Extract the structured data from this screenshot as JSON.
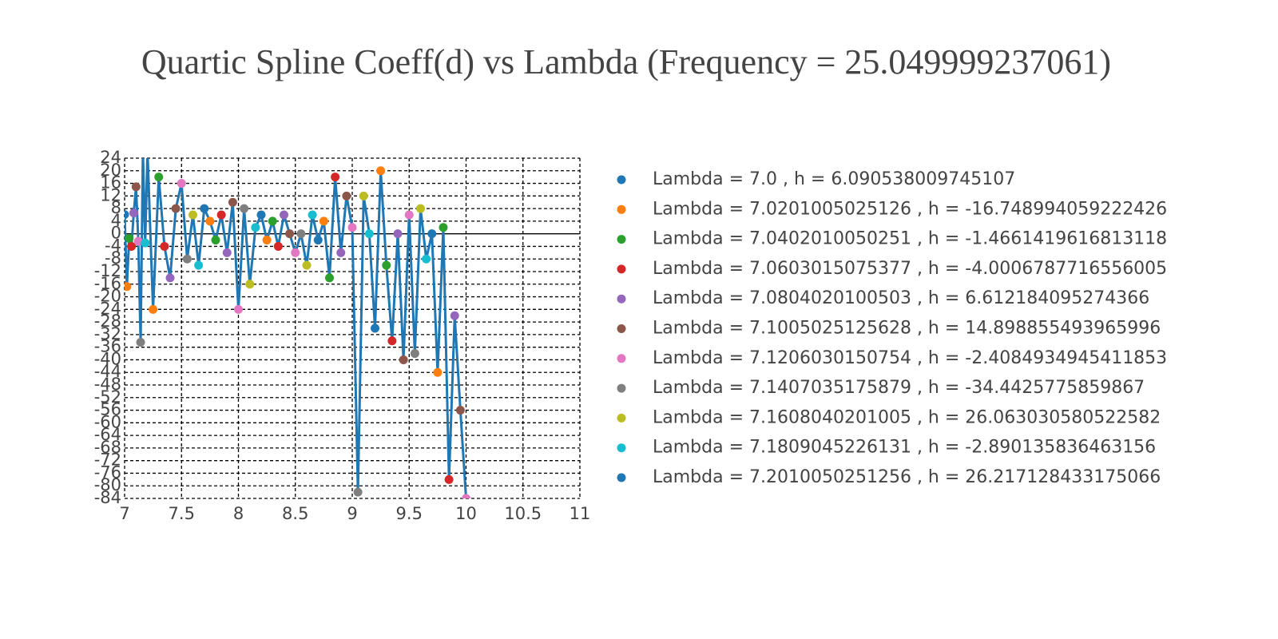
{
  "chart_data": {
    "type": "line",
    "title": "Quartic Spline Coeff(d) vs Lambda (Frequency = 25.049999237061)",
    "x": [
      7.0,
      7.0201005025126,
      7.0402010050251,
      7.0603015075377,
      7.0804020100503,
      7.1005025125628,
      7.1206030150754,
      7.1407035175879,
      7.1608040201005,
      7.1809045226131,
      7.2010050251256,
      7.25,
      7.3,
      7.35,
      7.4,
      7.45,
      7.5,
      7.55,
      7.6,
      7.65,
      7.7,
      7.75,
      7.8,
      7.85,
      7.9,
      7.95,
      8.0,
      8.05,
      8.1,
      8.15,
      8.2,
      8.25,
      8.3,
      8.35,
      8.4,
      8.45,
      8.5,
      8.55,
      8.6,
      8.65,
      8.7,
      8.75,
      8.8,
      8.85,
      8.9,
      8.95,
      9.0,
      9.05,
      9.1,
      9.15,
      9.2,
      9.25,
      9.3,
      9.35,
      9.4,
      9.45,
      9.5,
      9.55,
      9.6,
      9.65,
      9.7,
      9.75,
      9.8,
      9.85,
      9.9,
      9.95,
      10.0
    ],
    "values": [
      6.090538009745107,
      -16.748994059222426,
      -1.4661419616813118,
      -4.0006787716556005,
      6.612184095274366,
      14.898855493965996,
      -2.4084934945411853,
      -34.4425775859867,
      26.063030580522582,
      -2.890135836463156,
      26.217128433175066,
      -24,
      18,
      -4,
      -14,
      8,
      16,
      -8,
      6,
      -10,
      8,
      4,
      -2,
      6,
      -6,
      10,
      -24,
      8,
      -16,
      2,
      6,
      -2,
      4,
      -4,
      6,
      0,
      -6,
      0,
      -10,
      6,
      -2,
      4,
      -14,
      18,
      -6,
      12,
      2,
      -82,
      12,
      0,
      -30,
      20,
      -10,
      -34,
      0,
      -40,
      6,
      -38,
      8,
      -8,
      0,
      -44,
      2,
      -78,
      -26,
      -56,
      -84
    ],
    "line_color": "#1f77b4",
    "palette": [
      "#1f77b4",
      "#ff7f0e",
      "#2ca02c",
      "#d62728",
      "#9467bd",
      "#8c564b",
      "#e377c2",
      "#7f7f7f",
      "#bcbd22",
      "#17becf"
    ],
    "series": [
      {
        "name": "Lambda = 7.0 , h = 6.090538009745107",
        "color": "#1f77b4"
      },
      {
        "name": "Lambda = 7.0201005025126 , h = -16.748994059222426",
        "color": "#ff7f0e"
      },
      {
        "name": "Lambda = 7.0402010050251 , h = -1.4661419616813118",
        "color": "#2ca02c"
      },
      {
        "name": "Lambda = 7.0603015075377 , h = -4.0006787716556005",
        "color": "#d62728"
      },
      {
        "name": "Lambda = 7.0804020100503 , h = 6.612184095274366",
        "color": "#9467bd"
      },
      {
        "name": "Lambda = 7.1005025125628 , h = 14.898855493965996",
        "color": "#8c564b"
      },
      {
        "name": "Lambda = 7.1206030150754 , h = -2.4084934945411853",
        "color": "#e377c2"
      },
      {
        "name": "Lambda = 7.1407035175879 , h = -34.4425775859867",
        "color": "#7f7f7f"
      },
      {
        "name": "Lambda = 7.1608040201005 , h = 26.063030580522582",
        "color": "#bcbd22"
      },
      {
        "name": "Lambda = 7.1809045226131 , h = -2.890135836463156",
        "color": "#17becf"
      },
      {
        "name": "Lambda = 7.2010050251256 , h = 26.217128433175066",
        "color": "#1f77b4"
      }
    ],
    "xlim": [
      7,
      11
    ],
    "xticks": [
      7,
      7.5,
      8,
      8.5,
      9,
      9.5,
      10,
      10.5,
      11
    ],
    "ylim": [
      -84,
      24
    ],
    "yticks": [
      -84,
      -80,
      -76,
      -72,
      -68,
      -64,
      -60,
      -56,
      -52,
      -48,
      -44,
      -40,
      -36,
      -32,
      -28,
      -24,
      -20,
      -16,
      -12,
      -8,
      -4,
      0,
      4,
      8,
      12,
      16,
      20,
      24
    ],
    "grid": true
  }
}
